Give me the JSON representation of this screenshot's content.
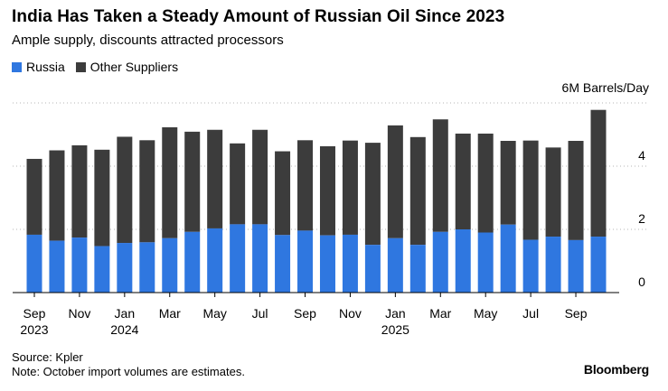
{
  "header": {
    "title": "India Has Taken a Steady Amount of Russian Oil Since 2023",
    "subtitle": "Ample supply, discounts attracted processors"
  },
  "legend": [
    {
      "label": "Russia",
      "color": "#2f77e0"
    },
    {
      "label": "Other Suppliers",
      "color": "#3c3c3c"
    }
  ],
  "footer": {
    "source": "Source: Kpler",
    "note": "Note: October import volumes are estimates.",
    "brand": "Bloomberg"
  },
  "chart_data": {
    "type": "bar",
    "stacked": true,
    "title": "India Has Taken a Steady Amount of Russian Oil Since 2023",
    "unit_label": "6M Barrels/Day",
    "ylim": [
      0,
      6
    ],
    "yticks": [
      0,
      2,
      4
    ],
    "y_axis_position": "right",
    "grid": "dotted horizontal",
    "categories": [
      "Sep 2023",
      "Oct 2023",
      "Nov 2023",
      "Dec 2023",
      "Jan 2024",
      "Feb 2024",
      "Mar 2024",
      "Apr 2024",
      "May 2024",
      "Jun 2024",
      "Jul 2024",
      "Aug 2024",
      "Sep 2024",
      "Oct 2024",
      "Nov 2024",
      "Dec 2024",
      "Jan 2025",
      "Feb 2025",
      "Mar 2025",
      "Apr 2025",
      "May 2025",
      "Jun 2025",
      "Jul 2025",
      "Aug 2025",
      "Sep 2025",
      "Oct 2025"
    ],
    "x_tick_labels": [
      {
        "index": 0,
        "month": "Sep",
        "year": "2023"
      },
      {
        "index": 2,
        "month": "Nov",
        "year": ""
      },
      {
        "index": 4,
        "month": "Jan",
        "year": "2024"
      },
      {
        "index": 6,
        "month": "Mar",
        "year": ""
      },
      {
        "index": 8,
        "month": "May",
        "year": ""
      },
      {
        "index": 10,
        "month": "Jul",
        "year": ""
      },
      {
        "index": 12,
        "month": "Sep",
        "year": ""
      },
      {
        "index": 14,
        "month": "Nov",
        "year": ""
      },
      {
        "index": 16,
        "month": "Jan",
        "year": "2025"
      },
      {
        "index": 18,
        "month": "Mar",
        "year": ""
      },
      {
        "index": 20,
        "month": "May",
        "year": ""
      },
      {
        "index": 22,
        "month": "Jul",
        "year": ""
      },
      {
        "index": 24,
        "month": "Sep",
        "year": ""
      }
    ],
    "series": [
      {
        "name": "Russia",
        "color": "#2f77e0",
        "values": [
          1.83,
          1.64,
          1.74,
          1.47,
          1.57,
          1.59,
          1.72,
          1.92,
          2.03,
          2.16,
          2.16,
          1.82,
          1.96,
          1.81,
          1.83,
          1.51,
          1.72,
          1.51,
          1.92,
          2.0,
          1.9,
          2.15,
          1.67,
          1.77,
          1.66,
          1.77
        ]
      },
      {
        "name": "Other Suppliers",
        "color": "#3c3c3c",
        "values": [
          2.4,
          2.86,
          2.92,
          3.05,
          3.36,
          3.23,
          3.51,
          3.17,
          3.12,
          2.56,
          2.99,
          2.65,
          2.86,
          2.82,
          2.98,
          3.23,
          3.57,
          3.41,
          3.56,
          3.03,
          3.13,
          2.65,
          3.14,
          2.82,
          3.14,
          4.01
        ]
      }
    ]
  }
}
